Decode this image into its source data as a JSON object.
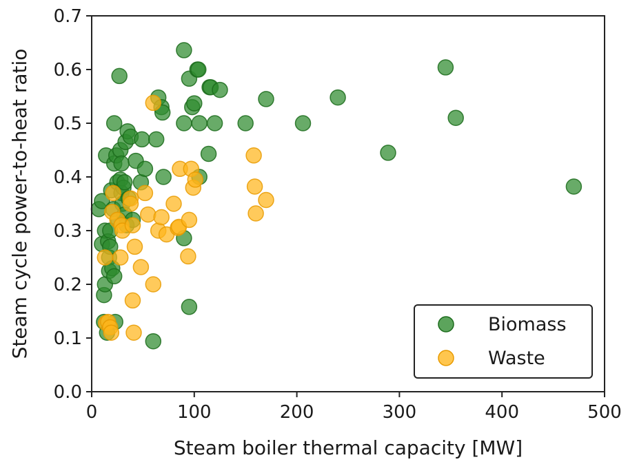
{
  "chart_data": {
    "type": "scatter",
    "title": "",
    "xlabel": "Steam boiler thermal capacity [MW]",
    "ylabel": "Steam cycle power-to-heat ratio",
    "xlim": [
      0,
      500
    ],
    "ylim": [
      0,
      0.7
    ],
    "xticks": [
      "0",
      "100",
      "200",
      "300",
      "400",
      "500"
    ],
    "yticks": [
      "0.0",
      "0.1",
      "0.2",
      "0.3",
      "0.4",
      "0.5",
      "0.6",
      "0.7"
    ],
    "grid": false,
    "legend_position": "bottom-right",
    "series": [
      {
        "name": "Biomass",
        "color": "#2e8b2e",
        "points": [
          [
            7,
            0.34
          ],
          [
            10,
            0.355
          ],
          [
            10,
            0.275
          ],
          [
            12,
            0.18
          ],
          [
            12,
            0.13
          ],
          [
            13,
            0.3
          ],
          [
            13,
            0.2
          ],
          [
            14,
            0.44
          ],
          [
            15,
            0.11
          ],
          [
            16,
            0.28
          ],
          [
            17,
            0.25
          ],
          [
            17,
            0.225
          ],
          [
            18,
            0.27
          ],
          [
            18,
            0.3
          ],
          [
            19,
            0.375
          ],
          [
            20,
            0.23
          ],
          [
            21,
            0.34
          ],
          [
            22,
            0.215
          ],
          [
            22,
            0.425
          ],
          [
            22,
            0.5
          ],
          [
            23,
            0.13
          ],
          [
            24,
            0.44
          ],
          [
            25,
            0.39
          ],
          [
            26,
            0.32
          ],
          [
            27,
            0.588
          ],
          [
            28,
            0.45
          ],
          [
            28,
            0.395
          ],
          [
            29,
            0.37
          ],
          [
            29,
            0.425
          ],
          [
            30,
            0.35
          ],
          [
            31,
            0.38
          ],
          [
            32,
            0.39
          ],
          [
            32,
            0.33
          ],
          [
            33,
            0.465
          ],
          [
            34,
            0.31
          ],
          [
            35,
            0.485
          ],
          [
            36,
            0.36
          ],
          [
            38,
            0.475
          ],
          [
            40,
            0.32
          ],
          [
            43,
            0.43
          ],
          [
            48,
            0.39
          ],
          [
            49,
            0.47
          ],
          [
            52,
            0.415
          ],
          [
            60,
            0.094
          ],
          [
            63,
            0.47
          ],
          [
            65,
            0.548
          ],
          [
            68,
            0.53
          ],
          [
            69,
            0.52
          ],
          [
            70,
            0.4
          ],
          [
            90,
            0.636
          ],
          [
            90,
            0.286
          ],
          [
            90,
            0.5
          ],
          [
            95,
            0.158
          ],
          [
            95,
            0.583
          ],
          [
            98,
            0.53
          ],
          [
            100,
            0.537
          ],
          [
            103,
            0.6
          ],
          [
            104,
            0.6
          ],
          [
            105,
            0.5
          ],
          [
            105,
            0.4
          ],
          [
            114,
            0.443
          ],
          [
            115,
            0.567
          ],
          [
            116,
            0.567
          ],
          [
            120,
            0.5
          ],
          [
            125,
            0.562
          ],
          [
            150,
            0.5
          ],
          [
            170,
            0.545
          ],
          [
            206,
            0.5
          ],
          [
            240,
            0.548
          ],
          [
            289,
            0.445
          ],
          [
            345,
            0.604
          ],
          [
            355,
            0.51
          ],
          [
            470,
            0.382
          ]
        ]
      },
      {
        "name": "Waste",
        "color": "#ffb61c",
        "points": [
          [
            13,
            0.25
          ],
          [
            14,
            0.128
          ],
          [
            16,
            0.13
          ],
          [
            18,
            0.12
          ],
          [
            19,
            0.11
          ],
          [
            20,
            0.335
          ],
          [
            21,
            0.37
          ],
          [
            25,
            0.32
          ],
          [
            28,
            0.25
          ],
          [
            29,
            0.31
          ],
          [
            30,
            0.3
          ],
          [
            38,
            0.36
          ],
          [
            38,
            0.35
          ],
          [
            40,
            0.31
          ],
          [
            40,
            0.17
          ],
          [
            41,
            0.11
          ],
          [
            42,
            0.27
          ],
          [
            48,
            0.232
          ],
          [
            52,
            0.37
          ],
          [
            55,
            0.33
          ],
          [
            60,
            0.538
          ],
          [
            60,
            0.2
          ],
          [
            65,
            0.3
          ],
          [
            68,
            0.325
          ],
          [
            73,
            0.293
          ],
          [
            80,
            0.35
          ],
          [
            84,
            0.305
          ],
          [
            85,
            0.307
          ],
          [
            86,
            0.415
          ],
          [
            94,
            0.252
          ],
          [
            95,
            0.32
          ],
          [
            97,
            0.415
          ],
          [
            99,
            0.38
          ],
          [
            101,
            0.395
          ],
          [
            158,
            0.44
          ],
          [
            159,
            0.382
          ],
          [
            160,
            0.332
          ],
          [
            170,
            0.357
          ]
        ]
      }
    ]
  }
}
